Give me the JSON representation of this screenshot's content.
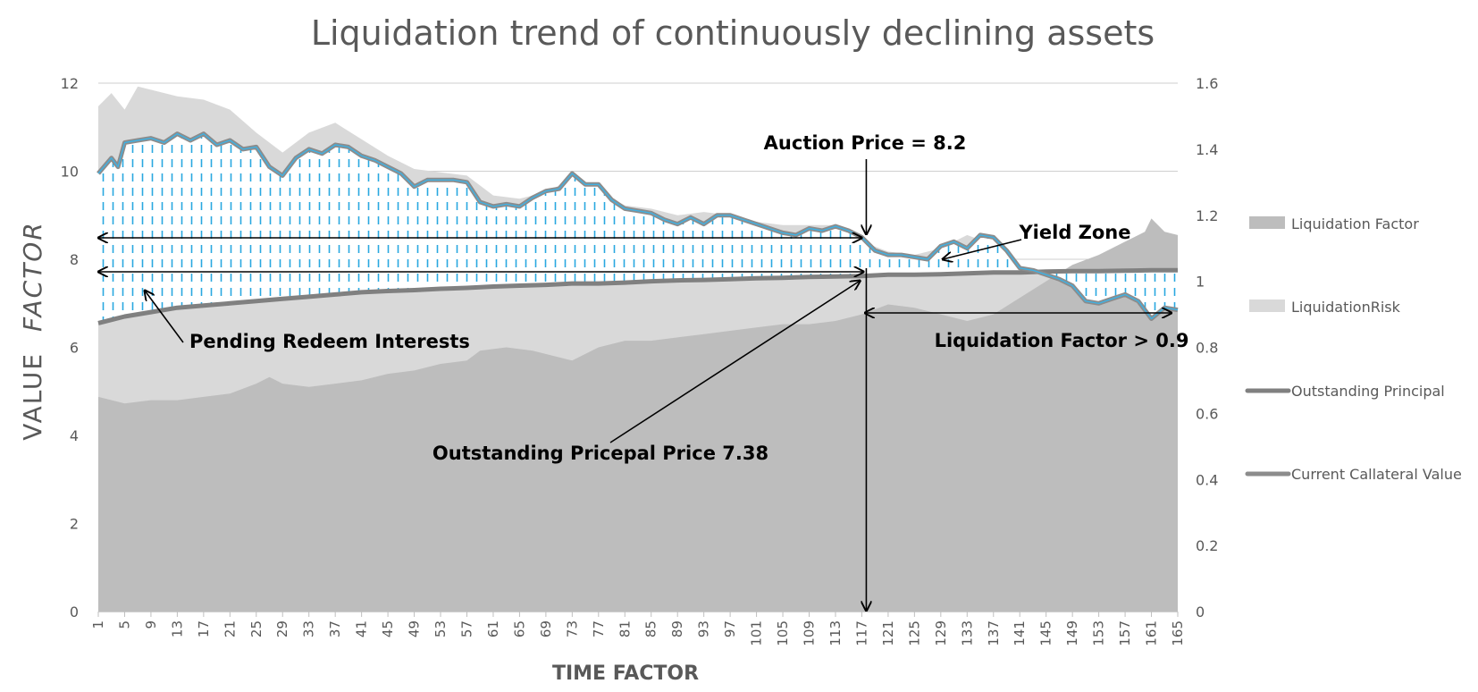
{
  "chart_data": {
    "type": "area",
    "title": "Liquidation trend of continuously declining assets",
    "xlabel": "TIME FACTOR",
    "ylabel": [
      "VALUE",
      "FACTOR"
    ],
    "x_range": [
      1,
      165
    ],
    "x_ticks": [
      1,
      5,
      9,
      13,
      17,
      21,
      25,
      29,
      33,
      37,
      41,
      45,
      49,
      53,
      57,
      61,
      65,
      69,
      73,
      77,
      81,
      85,
      89,
      93,
      97,
      101,
      105,
      109,
      113,
      117,
      121,
      125,
      129,
      133,
      137,
      141,
      145,
      149,
      153,
      157,
      161,
      165
    ],
    "ylim": [
      0,
      12
    ],
    "y_ticks": [
      0,
      2,
      4,
      6,
      8,
      10,
      12
    ],
    "y2lim": [
      0,
      1.6
    ],
    "y2_ticks": [
      "0",
      "0.2",
      "0.4",
      "0.6",
      "0.8",
      "1",
      "1.2",
      "1.4",
      "1.6"
    ],
    "grid": "horizontal",
    "legend_position": "right",
    "series": [
      {
        "name": "Liquidation Factor",
        "axis": "secondary",
        "type": "area",
        "color": "#bdbdbd",
        "points": [
          [
            1,
            0.65
          ],
          [
            5,
            0.63
          ],
          [
            9,
            0.64
          ],
          [
            13,
            0.64
          ],
          [
            17,
            0.65
          ],
          [
            21,
            0.66
          ],
          [
            25,
            0.69
          ],
          [
            27,
            0.71
          ],
          [
            29,
            0.69
          ],
          [
            33,
            0.68
          ],
          [
            37,
            0.69
          ],
          [
            41,
            0.7
          ],
          [
            45,
            0.72
          ],
          [
            49,
            0.73
          ],
          [
            53,
            0.75
          ],
          [
            57,
            0.76
          ],
          [
            59,
            0.79
          ],
          [
            63,
            0.8
          ],
          [
            67,
            0.79
          ],
          [
            71,
            0.77
          ],
          [
            73,
            0.76
          ],
          [
            77,
            0.8
          ],
          [
            81,
            0.82
          ],
          [
            85,
            0.82
          ],
          [
            89,
            0.83
          ],
          [
            93,
            0.84
          ],
          [
            97,
            0.85
          ],
          [
            101,
            0.86
          ],
          [
            105,
            0.87
          ],
          [
            109,
            0.87
          ],
          [
            113,
            0.88
          ],
          [
            117,
            0.9
          ],
          [
            121,
            0.93
          ],
          [
            125,
            0.92
          ],
          [
            129,
            0.9
          ],
          [
            133,
            0.88
          ],
          [
            137,
            0.9
          ],
          [
            141,
            0.95
          ],
          [
            145,
            1.0
          ],
          [
            149,
            1.05
          ],
          [
            153,
            1.08
          ],
          [
            157,
            1.12
          ],
          [
            160,
            1.15
          ],
          [
            161,
            1.19
          ],
          [
            163,
            1.15
          ],
          [
            165,
            1.14
          ]
        ]
      },
      {
        "name": "LiquidationRisk",
        "axis": "secondary",
        "type": "area",
        "color": "#d9d9d9",
        "points": [
          [
            1,
            1.53
          ],
          [
            3,
            1.57
          ],
          [
            5,
            1.52
          ],
          [
            7,
            1.59
          ],
          [
            9,
            1.58
          ],
          [
            13,
            1.56
          ],
          [
            17,
            1.55
          ],
          [
            21,
            1.52
          ],
          [
            25,
            1.45
          ],
          [
            29,
            1.39
          ],
          [
            33,
            1.45
          ],
          [
            37,
            1.48
          ],
          [
            41,
            1.43
          ],
          [
            45,
            1.38
          ],
          [
            49,
            1.34
          ],
          [
            53,
            1.33
          ],
          [
            57,
            1.32
          ],
          [
            61,
            1.26
          ],
          [
            65,
            1.25
          ],
          [
            69,
            1.27
          ],
          [
            73,
            1.31
          ],
          [
            77,
            1.27
          ],
          [
            81,
            1.23
          ],
          [
            85,
            1.22
          ],
          [
            89,
            1.2
          ],
          [
            93,
            1.21
          ],
          [
            97,
            1.2
          ],
          [
            101,
            1.18
          ],
          [
            105,
            1.17
          ],
          [
            109,
            1.17
          ],
          [
            113,
            1.17
          ],
          [
            117,
            1.12
          ],
          [
            121,
            1.09
          ],
          [
            125,
            1.08
          ],
          [
            129,
            1.1
          ],
          [
            133,
            1.14
          ],
          [
            137,
            1.11
          ],
          [
            141,
            1.04
          ],
          [
            145,
            1.02
          ],
          [
            149,
            1.01
          ],
          [
            153,
            1.0
          ],
          [
            157,
            1.0
          ],
          [
            161,
            0.98
          ],
          [
            165,
            0.98
          ]
        ]
      },
      {
        "name": "Outstanding Principal",
        "axis": "primary",
        "type": "line",
        "color": "#808080",
        "points": [
          [
            1,
            6.55
          ],
          [
            5,
            6.7
          ],
          [
            9,
            6.8
          ],
          [
            13,
            6.9
          ],
          [
            17,
            6.95
          ],
          [
            21,
            7.0
          ],
          [
            25,
            7.05
          ],
          [
            29,
            7.1
          ],
          [
            33,
            7.15
          ],
          [
            37,
            7.2
          ],
          [
            41,
            7.25
          ],
          [
            45,
            7.28
          ],
          [
            49,
            7.3
          ],
          [
            53,
            7.33
          ],
          [
            57,
            7.35
          ],
          [
            61,
            7.38
          ],
          [
            65,
            7.4
          ],
          [
            69,
            7.42
          ],
          [
            73,
            7.45
          ],
          [
            77,
            7.45
          ],
          [
            81,
            7.47
          ],
          [
            85,
            7.5
          ],
          [
            89,
            7.52
          ],
          [
            93,
            7.53
          ],
          [
            97,
            7.55
          ],
          [
            101,
            7.57
          ],
          [
            105,
            7.58
          ],
          [
            109,
            7.6
          ],
          [
            113,
            7.61
          ],
          [
            117,
            7.62
          ],
          [
            121,
            7.65
          ],
          [
            125,
            7.65
          ],
          [
            129,
            7.66
          ],
          [
            133,
            7.68
          ],
          [
            137,
            7.7
          ],
          [
            141,
            7.7
          ],
          [
            145,
            7.72
          ],
          [
            149,
            7.73
          ],
          [
            153,
            7.73
          ],
          [
            157,
            7.74
          ],
          [
            161,
            7.75
          ],
          [
            165,
            7.75
          ]
        ]
      },
      {
        "name": "Current Callateral Value",
        "axis": "primary",
        "type": "line",
        "color": "#8c8c8c",
        "points": [
          [
            1,
            9.95
          ],
          [
            3,
            10.3
          ],
          [
            4,
            10.1
          ],
          [
            5,
            10.65
          ],
          [
            7,
            10.7
          ],
          [
            9,
            10.75
          ],
          [
            11,
            10.65
          ],
          [
            13,
            10.85
          ],
          [
            15,
            10.7
          ],
          [
            17,
            10.85
          ],
          [
            19,
            10.6
          ],
          [
            21,
            10.7
          ],
          [
            23,
            10.5
          ],
          [
            25,
            10.55
          ],
          [
            27,
            10.1
          ],
          [
            29,
            9.9
          ],
          [
            31,
            10.3
          ],
          [
            33,
            10.5
          ],
          [
            35,
            10.4
          ],
          [
            37,
            10.6
          ],
          [
            39,
            10.55
          ],
          [
            41,
            10.35
          ],
          [
            43,
            10.25
          ],
          [
            45,
            10.1
          ],
          [
            47,
            9.95
          ],
          [
            49,
            9.65
          ],
          [
            51,
            9.8
          ],
          [
            53,
            9.8
          ],
          [
            55,
            9.8
          ],
          [
            57,
            9.75
          ],
          [
            59,
            9.3
          ],
          [
            61,
            9.2
          ],
          [
            63,
            9.25
          ],
          [
            65,
            9.2
          ],
          [
            67,
            9.4
          ],
          [
            69,
            9.55
          ],
          [
            71,
            9.6
          ],
          [
            73,
            9.95
          ],
          [
            75,
            9.7
          ],
          [
            77,
            9.7
          ],
          [
            79,
            9.35
          ],
          [
            81,
            9.15
          ],
          [
            83,
            9.1
          ],
          [
            85,
            9.05
          ],
          [
            87,
            8.9
          ],
          [
            89,
            8.8
          ],
          [
            91,
            8.95
          ],
          [
            93,
            8.8
          ],
          [
            95,
            9.0
          ],
          [
            97,
            9.0
          ],
          [
            99,
            8.9
          ],
          [
            101,
            8.8
          ],
          [
            103,
            8.7
          ],
          [
            105,
            8.6
          ],
          [
            107,
            8.55
          ],
          [
            109,
            8.7
          ],
          [
            111,
            8.65
          ],
          [
            113,
            8.75
          ],
          [
            115,
            8.65
          ],
          [
            117,
            8.5
          ],
          [
            119,
            8.2
          ],
          [
            121,
            8.1
          ],
          [
            123,
            8.1
          ],
          [
            125,
            8.05
          ],
          [
            127,
            8.0
          ],
          [
            129,
            8.3
          ],
          [
            131,
            8.4
          ],
          [
            133,
            8.25
          ],
          [
            135,
            8.55
          ],
          [
            137,
            8.5
          ],
          [
            139,
            8.2
          ],
          [
            141,
            7.8
          ],
          [
            143,
            7.75
          ],
          [
            145,
            7.65
          ],
          [
            147,
            7.55
          ],
          [
            149,
            7.4
          ],
          [
            151,
            7.05
          ],
          [
            153,
            7.0
          ],
          [
            155,
            7.1
          ],
          [
            157,
            7.2
          ],
          [
            159,
            7.05
          ],
          [
            161,
            6.65
          ],
          [
            163,
            6.9
          ],
          [
            165,
            6.85
          ]
        ]
      }
    ],
    "annotations": [
      {
        "text": "Auction Price = 8.2",
        "x": 117,
        "y": 10.6
      },
      {
        "text": "Yield Zone",
        "x": 142,
        "y": 8.65
      },
      {
        "text": "Pending Redeem Interests",
        "x": 40,
        "y": 6.1
      },
      {
        "text": "Liquidation Factor > 0.9",
        "x": 145,
        "y": 6.15
      },
      {
        "text": "Outstanding Pricepal Price 7.38",
        "x": 75,
        "y": 3.6
      }
    ]
  }
}
